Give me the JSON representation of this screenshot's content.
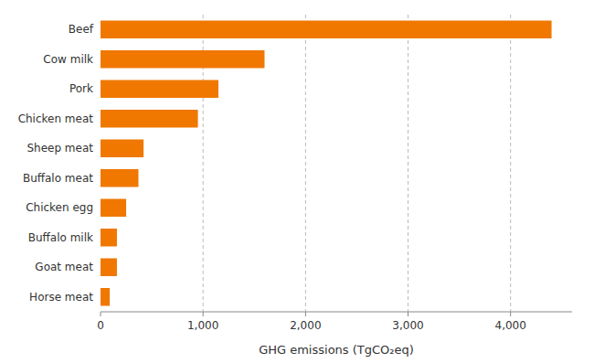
{
  "chart_data": {
    "type": "bar",
    "orientation": "horizontal",
    "categories": [
      "Beef",
      "Cow milk",
      "Pork",
      "Chicken meat",
      "Sheep meat",
      "Buffalo meat",
      "Chicken egg",
      "Buffalo milk",
      "Goat meat",
      "Horse meat"
    ],
    "values": [
      4400,
      1600,
      1150,
      950,
      420,
      370,
      250,
      160,
      160,
      90
    ],
    "color": "#F07800",
    "xlabel": "GHG emissions (TgCO₂eq)",
    "xlim": [
      0,
      4600
    ],
    "xticks": [
      0,
      {
        "value": 1000,
        "label": "1,000"
      },
      {
        "value": 2000,
        "label": "2,000"
      },
      {
        "value": 3000,
        "label": "3,000"
      },
      {
        "value": 4000,
        "label": "4,000"
      }
    ],
    "grid": true
  }
}
